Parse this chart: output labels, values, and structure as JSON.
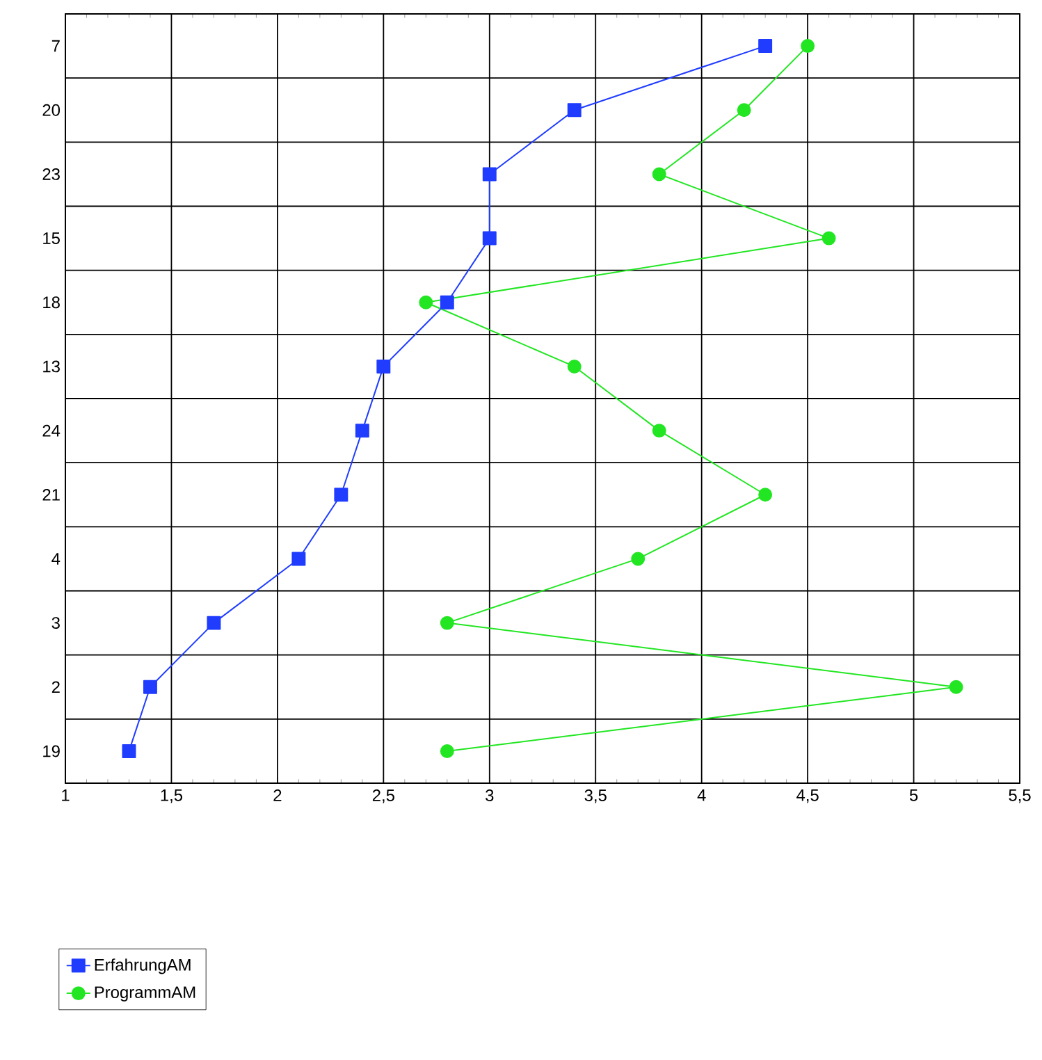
{
  "chart_data": {
    "type": "line",
    "orientation": "horizontal",
    "categories": [
      "7",
      "20",
      "23",
      "15",
      "18",
      "13",
      "24",
      "21",
      "4",
      "3",
      "2",
      "19"
    ],
    "series": [
      {
        "name": "ErfahrungAM",
        "color": "#1f3cff",
        "marker": "square",
        "values": [
          4.3,
          3.4,
          3.0,
          3.0,
          2.8,
          2.5,
          2.4,
          2.3,
          2.1,
          1.7,
          1.4,
          1.3
        ]
      },
      {
        "name": "ProgrammAM",
        "color": "#22e622",
        "marker": "circle",
        "values": [
          4.5,
          4.2,
          3.8,
          4.6,
          2.7,
          3.4,
          3.8,
          4.3,
          3.7,
          2.8,
          5.2,
          2.8
        ]
      }
    ],
    "xlim": [
      1,
      5.5
    ],
    "xticks": [
      1,
      {
        "value": 1.5,
        "label": "1,5"
      },
      2,
      {
        "value": 2.5,
        "label": "2,5"
      },
      3,
      {
        "value": 3.5,
        "label": "3,5"
      },
      4,
      {
        "value": 4.5,
        "label": "4,5"
      },
      5,
      {
        "value": 5.5,
        "label": "5,5"
      }
    ],
    "grid": true,
    "legend": "bottom left",
    "line_style": "solid"
  }
}
